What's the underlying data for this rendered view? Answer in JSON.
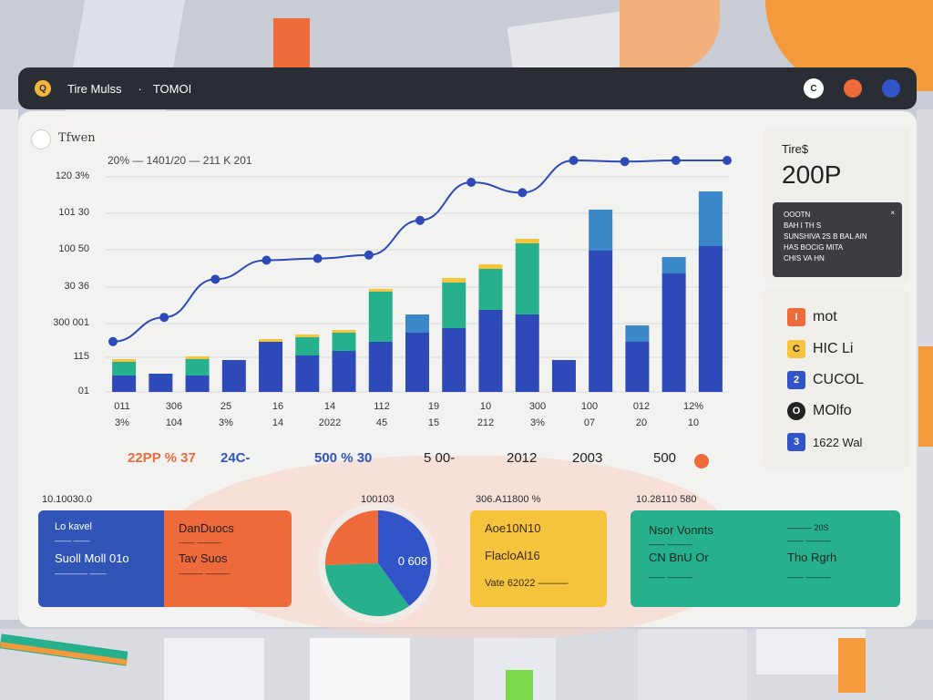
{
  "titlebar": {
    "title": "Tire Mulss",
    "separator": "·",
    "subtitle": "TOMOI",
    "logo": "Q",
    "ctrl_label": "C"
  },
  "chart": {
    "title": "Tfwen",
    "subtitle": "20% — 1401/20 — 211 K 201"
  },
  "chart_data": {
    "type": "bar",
    "y_ticks": [
      "120 3%",
      "101 30",
      "100 50",
      "30 36",
      "300 001",
      "115",
      "01"
    ],
    "x_labels_top": [
      "011",
      "306",
      "25",
      "16",
      "14",
      "112",
      "19",
      "10",
      "300",
      "100",
      "012",
      "12%"
    ],
    "x_labels_bottom": [
      "3%",
      "104",
      "3%",
      "14",
      "2022",
      "45",
      "15",
      "212",
      "3%",
      "07",
      "20",
      "10"
    ],
    "bars": [
      {
        "base": 18,
        "mid": 15,
        "top": 3
      },
      {
        "base": 20,
        "mid": 0,
        "top": 0
      },
      {
        "base": 18,
        "mid": 18,
        "top": 3
      },
      {
        "base": 35,
        "mid": 0,
        "top": 0
      },
      {
        "base": 55,
        "mid": 0,
        "top": 3
      },
      {
        "base": 40,
        "mid": 20,
        "top": 3
      },
      {
        "base": 45,
        "mid": 20,
        "top": 3
      },
      {
        "base": 55,
        "mid": 55,
        "top": 3
      },
      {
        "base": 65,
        "mid": 0,
        "top": 20
      },
      {
        "base": 70,
        "mid": 50,
        "top": 5
      },
      {
        "base": 90,
        "mid": 45,
        "top": 5
      },
      {
        "base": 85,
        "mid": 78,
        "top": 5
      },
      {
        "base": 35,
        "mid": 0,
        "top": 0
      },
      {
        "base": 155,
        "mid": 0,
        "top": 45
      },
      {
        "base": 55,
        "mid": 0,
        "top": 18
      },
      {
        "base": 130,
        "mid": 0,
        "top": 18
      },
      {
        "base": 160,
        "mid": 0,
        "top": 60
      }
    ],
    "line": [
      8,
      22,
      44,
      55,
      56,
      58,
      78,
      100,
      94,
      120,
      112,
      126,
      131
    ],
    "colors": {
      "blue": "#2e49b8",
      "teal": "#27b08c",
      "light_blue": "#3b88c8",
      "yellow": "#f5c43c",
      "line": "#2e49b8"
    }
  },
  "summary": [
    {
      "text": "22PP % 37",
      "color": "#ef6a3b"
    },
    {
      "text": "24C-",
      "color": "#3154c8"
    },
    {
      "text": "500 % 30",
      "color": "#3154c8"
    },
    {
      "text": "5 00-",
      "color": "#222"
    },
    {
      "text": "2012",
      "color": "#222"
    },
    {
      "text": "2003",
      "color": "#222"
    },
    {
      "text": "500",
      "color": "#222"
    }
  ],
  "right": {
    "label": "Tire$",
    "value": "200P",
    "dark_lines": [
      "OOOTN",
      "BAH I TH S",
      "SUNSHIVA 2S B BAL AIN",
      "HAS BOCIG MITA",
      "CHIS VA HN"
    ],
    "close": "×"
  },
  "legend": [
    {
      "mark": "I",
      "label": "mot",
      "color": "#ef6a3b"
    },
    {
      "mark": "C",
      "label": "HIC Li",
      "color": "#f5c43c"
    },
    {
      "mark": "2",
      "label": "CUCOL",
      "color": "#3154c8"
    },
    {
      "mark": "O",
      "label": "MOlfo",
      "color": "#222"
    },
    {
      "mark": "3",
      "label": "1622 Wal",
      "color": "#3154c8"
    }
  ],
  "bottom": {
    "card1": {
      "title": "10.10030.0",
      "left_t1": "Lo kavel",
      "left_t2": "—— ——",
      "left_t3": "Suoll Moll 01o",
      "left_t4": "———— ——",
      "right_t1": "DanDuocs",
      "right_t2": "—— ———",
      "right_t3": "Tav Suos",
      "right_t4": "——— ———"
    },
    "pie": {
      "title": "100103",
      "center": "0 608"
    },
    "card3": {
      "title": "306.A11800 %",
      "t1": "Aoe10N10",
      "t2": "FlacloAl16",
      "t3": "Vate 62022 ———"
    },
    "card4": {
      "title": "10.28110 580",
      "l1": "Nsor Vonnts",
      "l2": "—— ———",
      "l3": "CN BnU Or",
      "l4": "—— ———",
      "r1": "——— 20S",
      "r2": "—— ———",
      "r3": "Tho Rgrh",
      "r4": "—— ———"
    }
  }
}
